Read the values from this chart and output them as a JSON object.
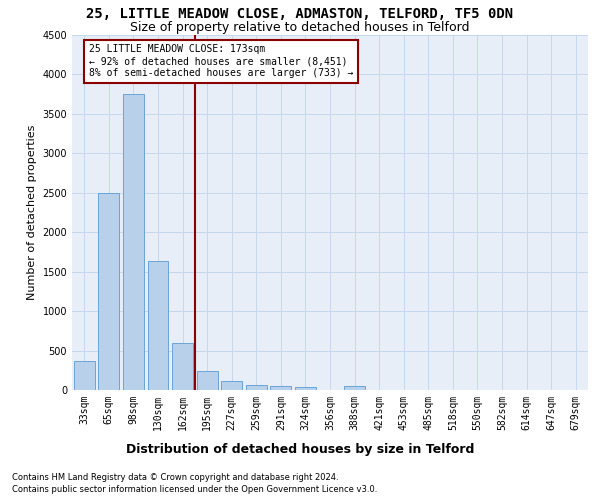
{
  "title": "25, LITTLE MEADOW CLOSE, ADMASTON, TELFORD, TF5 0DN",
  "subtitle": "Size of property relative to detached houses in Telford",
  "xlabel": "Distribution of detached houses by size in Telford",
  "ylabel": "Number of detached properties",
  "footer_line1": "Contains HM Land Registry data © Crown copyright and database right 2024.",
  "footer_line2": "Contains public sector information licensed under the Open Government Licence v3.0.",
  "categories": [
    "33sqm",
    "65sqm",
    "98sqm",
    "130sqm",
    "162sqm",
    "195sqm",
    "227sqm",
    "259sqm",
    "291sqm",
    "324sqm",
    "356sqm",
    "388sqm",
    "421sqm",
    "453sqm",
    "485sqm",
    "518sqm",
    "550sqm",
    "582sqm",
    "614sqm",
    "647sqm",
    "679sqm"
  ],
  "values": [
    370,
    2500,
    3750,
    1640,
    600,
    235,
    110,
    65,
    45,
    35,
    0,
    55,
    0,
    0,
    0,
    0,
    0,
    0,
    0,
    0,
    0
  ],
  "bar_color": "#b8d0ea",
  "bar_edgecolor": "#5b9bd5",
  "vline_x": 4.5,
  "vline_color": "#8b0000",
  "annotation_line1": "25 LITTLE MEADOW CLOSE: 173sqm",
  "annotation_line2": "← 92% of detached houses are smaller (8,451)",
  "annotation_line3": "8% of semi-detached houses are larger (733) →",
  "annotation_box_color": "#8b0000",
  "ylim": [
    0,
    4500
  ],
  "yticks": [
    0,
    500,
    1000,
    1500,
    2000,
    2500,
    3000,
    3500,
    4000,
    4500
  ],
  "grid_color": "#c8d8ec",
  "bg_color": "#e8eef8",
  "title_fontsize": 10,
  "subtitle_fontsize": 9,
  "tick_fontsize": 7,
  "ylabel_fontsize": 8,
  "xlabel_fontsize": 9,
  "footer_fontsize": 6
}
